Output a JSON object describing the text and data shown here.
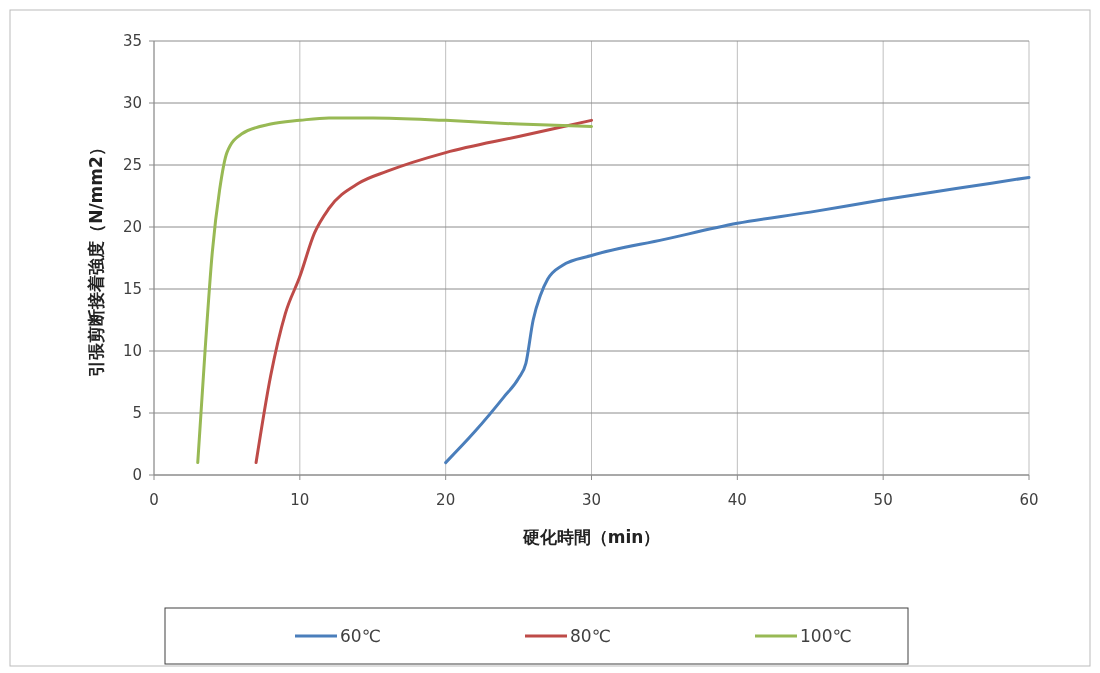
{
  "chart_data": {
    "type": "line",
    "xlabel": "硬化時間（min）",
    "ylabel": "引張剪断接着強度（N/mm2）",
    "xlim": [
      0,
      60
    ],
    "xticks": [
      0,
      10,
      20,
      30,
      40,
      50,
      60
    ],
    "ylim": [
      0,
      35
    ],
    "yticks": [
      0,
      5,
      10,
      15,
      20,
      25,
      30,
      35
    ],
    "grid": true,
    "legend": "bottom",
    "marker": "none",
    "line_style": "solid",
    "series": [
      {
        "name": "60℃",
        "color": "#4a7ebb",
        "x": [
          20,
          22,
          24,
          25,
          25.5,
          26,
          26.5,
          27,
          28,
          30,
          35,
          40,
          45,
          50,
          55,
          60
        ],
        "values": [
          1,
          3.5,
          6.3,
          7.8,
          9,
          12.5,
          14.5,
          15.8,
          16.9,
          17.7,
          19,
          20.3,
          21.2,
          22.2,
          23.1,
          24
        ]
      },
      {
        "name": "80℃",
        "color": "#be4b48",
        "x": [
          7,
          8,
          9,
          10,
          11,
          12,
          14,
          16,
          20,
          25,
          30
        ],
        "values": [
          1,
          8,
          13,
          16,
          19.5,
          21.5,
          23.5,
          24.5,
          26,
          27.3,
          28.6
        ]
      },
      {
        "name": "100℃",
        "color": "#98b954",
        "x": [
          3,
          3.5,
          4,
          4.5,
          5,
          6,
          8,
          10,
          12,
          15,
          20,
          25,
          30
        ],
        "values": [
          1,
          10,
          18,
          23,
          26,
          27.5,
          28.3,
          28.6,
          28.8,
          28.8,
          28.6,
          28.3,
          28.1
        ]
      }
    ]
  }
}
